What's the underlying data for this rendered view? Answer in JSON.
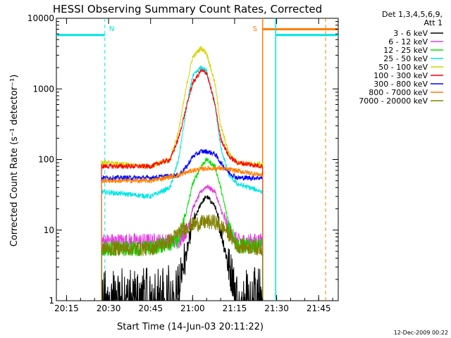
{
  "chart_data": {
    "type": "line",
    "title": "HESSI Observing Summary Count Rates, Corrected",
    "xlabel": "Start Time (14-Jun-03 20:11:22)",
    "ylabel": "Corrected Count Rate (s⁻¹ detector⁻¹)",
    "footer": "12-Dec-2009 00:22",
    "legend_header": [
      "Det 1,3,4,5,6,9,",
      "Att 1"
    ],
    "legend_position": "right",
    "xlim": [
      "20:11:22",
      "21:52:00"
    ],
    "ylim": [
      1,
      10000
    ],
    "yscale": "log",
    "x_ticks": [
      "20:15",
      "20:30",
      "20:45",
      "21:00",
      "21:15",
      "21:30",
      "21:45"
    ],
    "y_ticks": [
      "1",
      "10",
      "100",
      "1000",
      "10000"
    ],
    "data_start": "20:27:30",
    "data_end": "21:25:00",
    "night_bars": [
      {
        "color": "#00e5e5",
        "start": "20:11:22",
        "end": "20:28:40",
        "level": 5800
      },
      {
        "color": "#00e5e5",
        "start": "21:29:40",
        "end": "21:52:00",
        "level": 5800
      }
    ],
    "saa_bar": {
      "color": "#ff7f00",
      "start": "21:25:00",
      "end": "21:52:00",
      "level": 7000
    },
    "markers": [
      {
        "label": "N",
        "time": "20:28:40",
        "color": "#00e5e5",
        "style": "dashed"
      },
      {
        "label": "S",
        "time": "21:25:00",
        "color": "#ff7f00",
        "style": "solid"
      },
      {
        "label": "",
        "time": "21:29:40",
        "color": "#00e5e5",
        "style": "solid"
      },
      {
        "label": "",
        "time": "21:47:30",
        "color": "#ff7f00",
        "style": "dashed"
      }
    ],
    "series": [
      {
        "name": "3 - 6 keV",
        "color": "#000000",
        "x": [
          "20:27",
          "20:45",
          "20:55",
          "20:58",
          "21:00",
          "21:03",
          "21:05",
          "21:08",
          "21:10",
          "21:13",
          "21:16",
          "21:25"
        ],
        "values": [
          1.5,
          1.5,
          1.8,
          5,
          12,
          24,
          30,
          22,
          10,
          3,
          1.5,
          1.5
        ]
      },
      {
        "name": "6 - 12 keV",
        "color": "#e040e0",
        "x": [
          "20:27",
          "20:45",
          "20:55",
          "20:58",
          "21:00",
          "21:03",
          "21:05",
          "21:08",
          "21:10",
          "21:13",
          "21:16",
          "21:25"
        ],
        "values": [
          7,
          7,
          7,
          10,
          20,
          35,
          42,
          35,
          20,
          10,
          7,
          7
        ]
      },
      {
        "name": "12 - 25 keV",
        "color": "#00e000",
        "x": [
          "20:27",
          "20:45",
          "20:55",
          "20:58",
          "21:00",
          "21:03",
          "21:05",
          "21:08",
          "21:10",
          "21:13",
          "21:16",
          "21:25"
        ],
        "values": [
          5.5,
          5.5,
          7,
          20,
          45,
          80,
          100,
          80,
          40,
          12,
          6,
          6
        ]
      },
      {
        "name": "25 - 50 keV",
        "color": "#00e5e5",
        "x": [
          "20:27",
          "20:45",
          "20:52",
          "20:55",
          "20:58",
          "21:00",
          "21:03",
          "21:05",
          "21:08",
          "21:10",
          "21:13",
          "21:16",
          "21:25"
        ],
        "values": [
          35,
          30,
          40,
          100,
          600,
          1500,
          2000,
          1800,
          600,
          150,
          60,
          45,
          35
        ]
      },
      {
        "name": "50 - 100 keV",
        "color": "#d4d400",
        "x": [
          "20:27",
          "20:45",
          "20:52",
          "20:55",
          "20:58",
          "21:00",
          "21:03",
          "21:05",
          "21:08",
          "21:10",
          "21:13",
          "21:16",
          "21:25"
        ],
        "values": [
          90,
          80,
          100,
          250,
          1200,
          2800,
          3800,
          3200,
          1200,
          300,
          120,
          90,
          85
        ]
      },
      {
        "name": "100 - 300 keV",
        "color": "#ff0000",
        "x": [
          "20:27",
          "20:45",
          "20:52",
          "20:55",
          "20:58",
          "21:00",
          "21:03",
          "21:05",
          "21:08",
          "21:10",
          "21:13",
          "21:16",
          "21:25"
        ],
        "values": [
          80,
          80,
          100,
          200,
          600,
          1200,
          1800,
          1700,
          600,
          200,
          110,
          90,
          80
        ]
      },
      {
        "name": "300 - 800 keV",
        "color": "#0000ff",
        "x": [
          "20:27",
          "20:45",
          "20:55",
          "20:58",
          "21:00",
          "21:03",
          "21:05",
          "21:08",
          "21:10",
          "21:13",
          "21:16",
          "21:25"
        ],
        "values": [
          55,
          55,
          60,
          80,
          110,
          130,
          130,
          120,
          90,
          65,
          55,
          55
        ]
      },
      {
        "name": "800 - 7000 keV",
        "color": "#ff7f00",
        "x": [
          "20:27",
          "20:45",
          "20:55",
          "21:00",
          "21:05",
          "21:10",
          "21:15",
          "21:25"
        ],
        "values": [
          50,
          50,
          60,
          70,
          75,
          75,
          70,
          60
        ]
      },
      {
        "name": "7000 - 20000 keV",
        "color": "#808000",
        "x": [
          "20:27",
          "20:45",
          "20:52",
          "20:56",
          "21:00",
          "21:05",
          "21:08",
          "21:12",
          "21:16",
          "21:25"
        ],
        "values": [
          5.5,
          5.5,
          7,
          10,
          12,
          13,
          13,
          10,
          6,
          5.5
        ]
      }
    ]
  }
}
